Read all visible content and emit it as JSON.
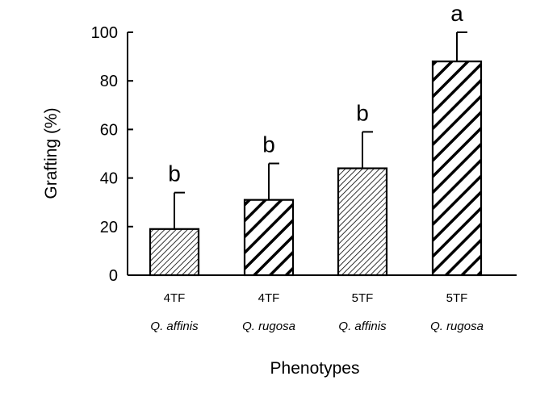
{
  "chart_data": {
    "type": "bar",
    "title": "",
    "xlabel": "Phenotypes",
    "ylabel": "Grafting (%)",
    "ylim": [
      0,
      100
    ],
    "yticks": [
      0,
      20,
      40,
      60,
      80,
      100
    ],
    "grid": false,
    "categories": [
      {
        "line1": "4TF",
        "line2": "Q. affinis"
      },
      {
        "line1": "4TF",
        "line2": "Q. rugosa"
      },
      {
        "line1": "5TF",
        "line2": "Q. affinis"
      },
      {
        "line1": "5TF",
        "line2": "Q. rugosa"
      }
    ],
    "values": [
      19,
      31,
      44,
      88
    ],
    "error_upper": [
      34,
      46,
      59,
      100
    ],
    "significance": [
      "b",
      "b",
      "b",
      "a"
    ],
    "patterns": [
      "fine-hatch",
      "bold-hatch",
      "fine-hatch",
      "bold-hatch"
    ],
    "colors": {
      "bar_edge": "#000000",
      "axis": "#000000"
    }
  }
}
